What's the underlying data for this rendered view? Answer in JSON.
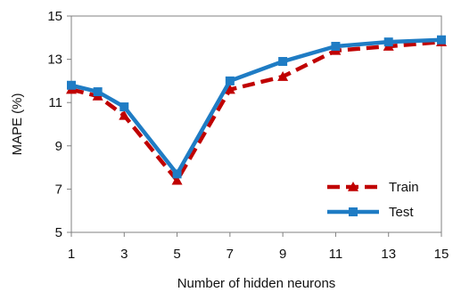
{
  "chart_data": {
    "type": "line",
    "x": [
      1,
      2,
      3,
      5,
      7,
      9,
      11,
      13,
      15
    ],
    "x_ticks": [
      1,
      3,
      5,
      7,
      9,
      11,
      13,
      15
    ],
    "xlim": [
      1,
      15
    ],
    "y_ticks": [
      5,
      7,
      9,
      11,
      13,
      15
    ],
    "ylim": [
      5,
      15
    ],
    "xlabel": "Number of hidden neurons",
    "ylabel": "MAPE (%)",
    "grid": false,
    "legend_position": "bottom-right",
    "series": [
      {
        "name": "Train",
        "values": [
          11.6,
          11.3,
          10.4,
          7.4,
          11.6,
          12.2,
          13.4,
          13.6,
          13.8
        ],
        "color": "#C00000",
        "line_style": "dashed",
        "marker": "triangle"
      },
      {
        "name": "Test",
        "values": [
          11.8,
          11.5,
          10.8,
          7.7,
          12.0,
          12.9,
          13.6,
          13.8,
          13.9
        ],
        "color": "#1F7CC4",
        "line_style": "solid",
        "marker": "square"
      }
    ]
  }
}
